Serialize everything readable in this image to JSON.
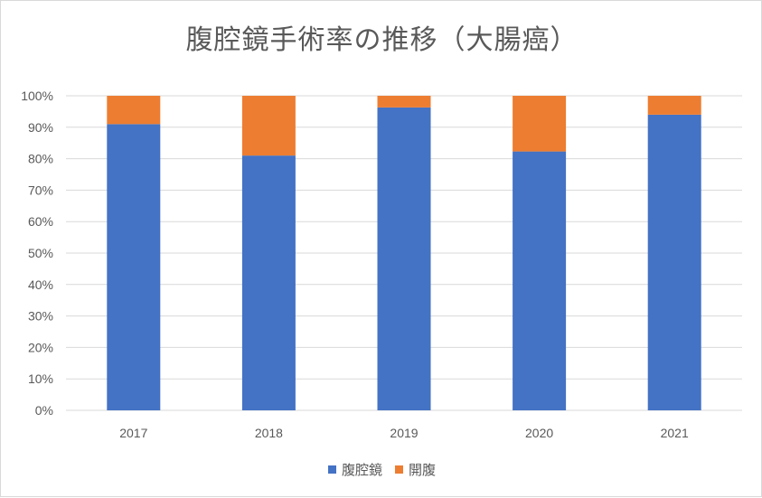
{
  "chart_data": {
    "type": "bar",
    "stacked": true,
    "percent": true,
    "title": "腹腔鏡手術率の推移（大腸癌）",
    "categories": [
      "2017",
      "2018",
      "2019",
      "2020",
      "2021"
    ],
    "series": [
      {
        "name": "腹腔鏡",
        "color": "#4472C4",
        "values": [
          91,
          81,
          96.3,
          82.3,
          94
        ]
      },
      {
        "name": "開腹",
        "color": "#ED7D31",
        "values": [
          9,
          19,
          3.7,
          17.7,
          6
        ]
      }
    ],
    "ylim": [
      0,
      100
    ],
    "yticks": [
      "0%",
      "10%",
      "20%",
      "30%",
      "40%",
      "50%",
      "60%",
      "70%",
      "80%",
      "90%",
      "100%"
    ],
    "grid": true,
    "legend": "bottom",
    "xlabel": "",
    "ylabel": ""
  }
}
